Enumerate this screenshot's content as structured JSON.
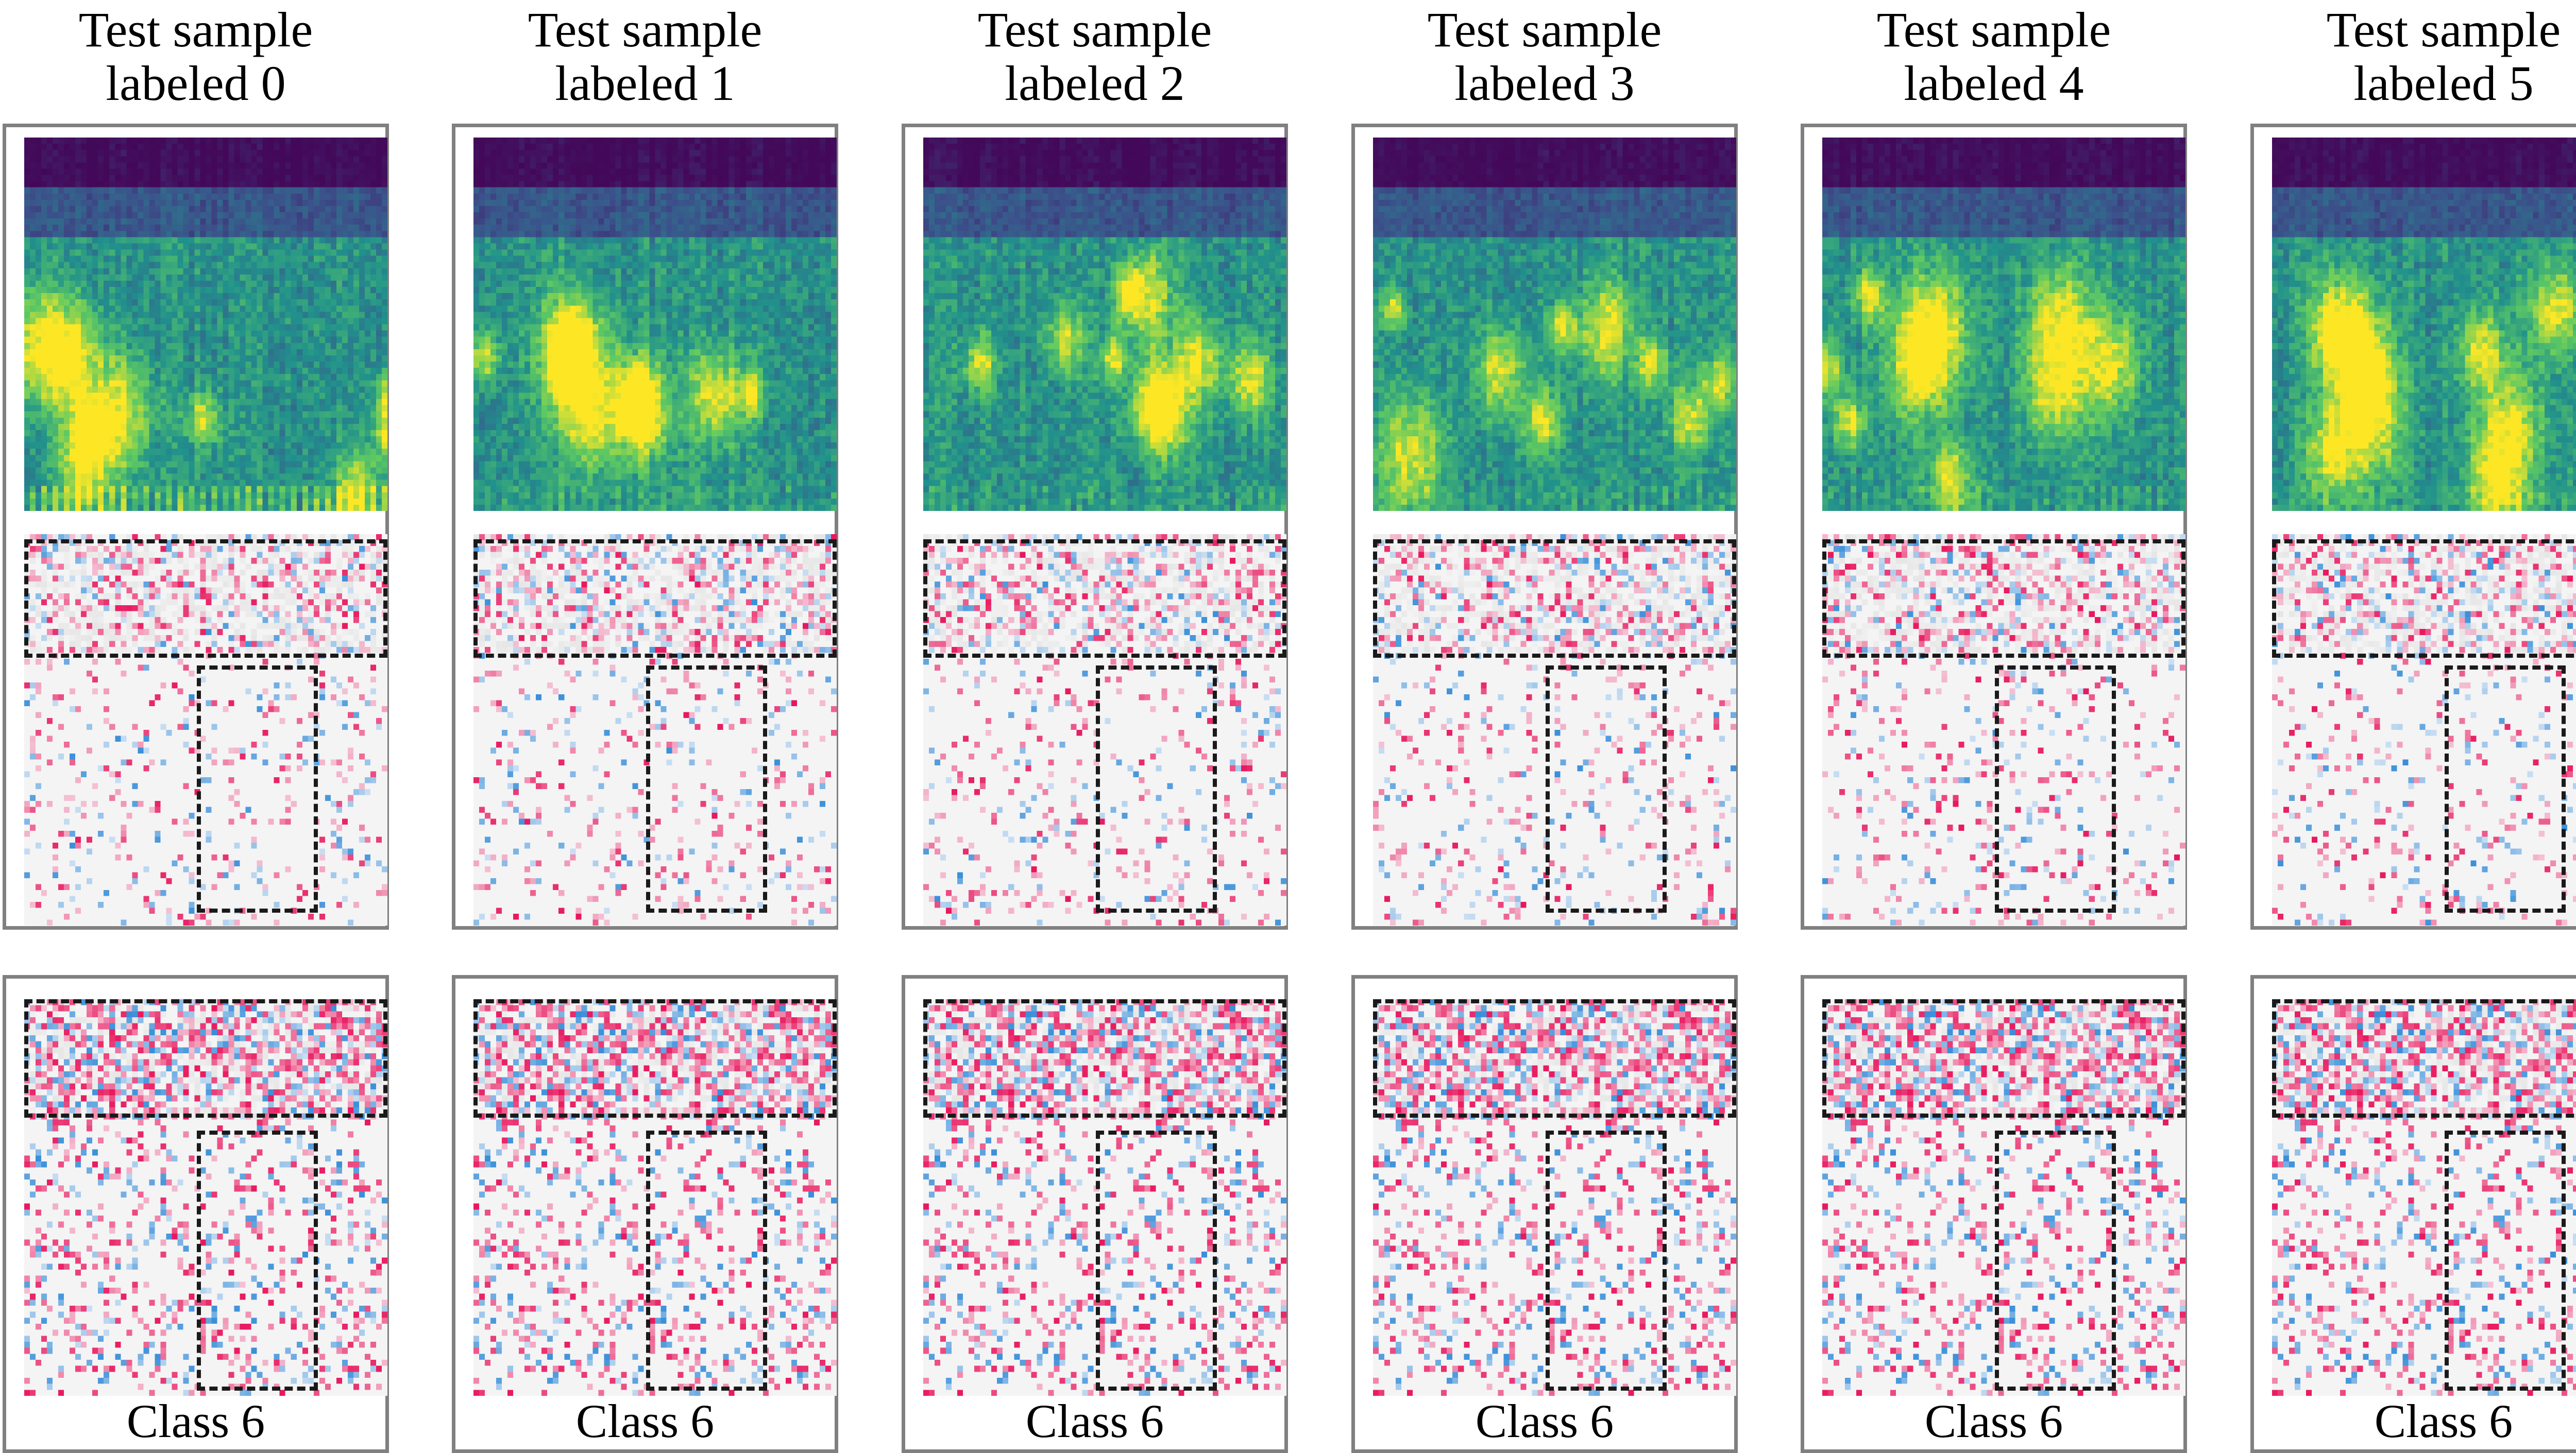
{
  "columns": [
    {
      "title_line1": "Test sample",
      "title_line2": "labeled 0",
      "class_label": "Class 6"
    },
    {
      "title_line1": "Test sample",
      "title_line2": "labeled 1",
      "class_label": "Class 6"
    },
    {
      "title_line1": "Test sample",
      "title_line2": "labeled 2",
      "class_label": "Class 6"
    },
    {
      "title_line1": "Test sample",
      "title_line2": "labeled 3",
      "class_label": "Class 6"
    },
    {
      "title_line1": "Test sample",
      "title_line2": "labeled 4",
      "class_label": "Class 6"
    },
    {
      "title_line1": "Test sample",
      "title_line2": "labeled 5",
      "class_label": "Class 6"
    }
  ],
  "colors": {
    "spectrogram_low": "#440154",
    "spectrogram_mid": "#21918c",
    "spectrogram_high": "#fde725",
    "saliency_positive": "#e8175d",
    "saliency_negative": "#3a8fd9",
    "saliency_neutral": "#e6e6e6",
    "panel_border": "#808080",
    "dashed_box": "#1a1a1a"
  }
}
